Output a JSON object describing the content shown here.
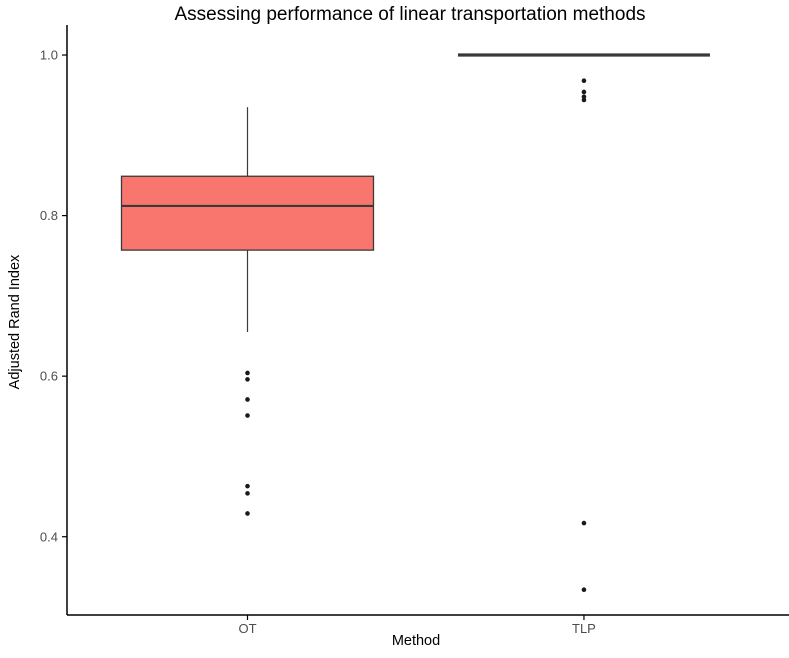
{
  "colors": {
    "box_fill": "#F8766D",
    "box_border": "#3A3A3A",
    "median": "#3A3A3A",
    "whisker": "#3A3A3A",
    "outlier": "#1A1A1A",
    "axis_line": "#000000",
    "tick_label": "#4D4D4D",
    "title_color": "#000000"
  },
  "chart_data": {
    "type": "boxplot",
    "title": "Assessing performance of linear transportation methods",
    "xlabel": "Method",
    "ylabel": "Adjusted Rand Index",
    "categories": [
      "OT",
      "TLP"
    ],
    "y_ticks": [
      1.0,
      0.8,
      0.6,
      0.4
    ],
    "y_tick_labels": [
      "1.0",
      "0.8",
      "0.6",
      "0.4"
    ],
    "ylim": [
      0.3025,
      1.0374
    ],
    "grid": false,
    "legend": false,
    "series": [
      {
        "name": "OT",
        "whisker_low": 0.655,
        "q1": 0.757,
        "median": 0.812,
        "q3": 0.849,
        "whisker_high": 0.935,
        "outliers": [
          0.604,
          0.596,
          0.571,
          0.551,
          0.463,
          0.454,
          0.429
        ]
      },
      {
        "name": "TLP",
        "whisker_low": 1.0,
        "q1": 1.0,
        "median": 1.0,
        "q3": 1.0,
        "whisker_high": 1.0,
        "outliers": [
          0.968,
          0.954,
          0.948,
          0.944,
          0.417,
          0.334
        ]
      }
    ]
  }
}
